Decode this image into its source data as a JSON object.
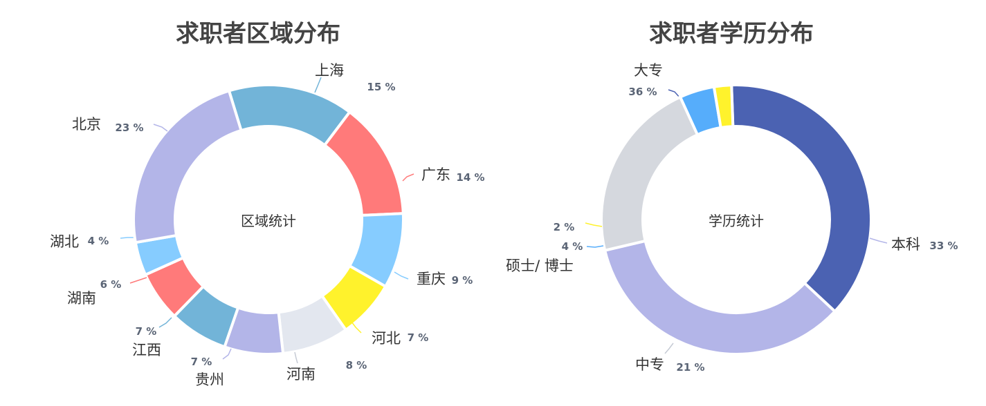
{
  "chart_data": [
    {
      "type": "donut",
      "title": "求职者区域分布",
      "center_label": "区域统计",
      "slices": [
        {
          "name": "上海",
          "percent_label": "15 %",
          "value": 15,
          "color": "#72b4d8"
        },
        {
          "name": "广东",
          "percent_label": "14 %",
          "value": 14,
          "color": "#ff7a7a"
        },
        {
          "name": "重庆",
          "percent_label": "9 %",
          "value": 9,
          "color": "#86ccff"
        },
        {
          "name": "河北",
          "percent_label": "7 %",
          "value": 7,
          "color": "#fff22c"
        },
        {
          "name": "河南",
          "percent_label": "8 %",
          "value": 8,
          "color": "#e3e7ef"
        },
        {
          "name": "贵州",
          "percent_label": "7 %",
          "value": 7,
          "color": "#b3b5e8"
        },
        {
          "name": "江西",
          "percent_label": "7 %",
          "value": 7,
          "color": "#72b4d8"
        },
        {
          "name": "湖南",
          "percent_label": "6 %",
          "value": 6,
          "color": "#ff7a7a"
        },
        {
          "name": "湖北",
          "percent_label": "4 %",
          "value": 4,
          "color": "#86ccff"
        },
        {
          "name": "北京",
          "percent_label": "23 %",
          "value": 23,
          "color": "#b3b5e8"
        }
      ]
    },
    {
      "type": "donut",
      "title": "求职者学历分布",
      "center_label": "学历统计",
      "slices": [
        {
          "name": "大专",
          "percent_label": "36 %",
          "value": 36,
          "color": "#4b62b2"
        },
        {
          "name": "本科",
          "percent_label": "33 %",
          "value": 33,
          "color": "#b3b5e8"
        },
        {
          "name": "中专",
          "percent_label": "21 %",
          "value": 21,
          "color": "#d5d8de"
        },
        {
          "name": "硕士/ 博士",
          "percent_label": "4 %",
          "value": 4,
          "color": "#56adfb"
        },
        {
          "name": "",
          "percent_label": "2 %",
          "value": 2,
          "color": "#fff22c"
        }
      ]
    }
  ]
}
